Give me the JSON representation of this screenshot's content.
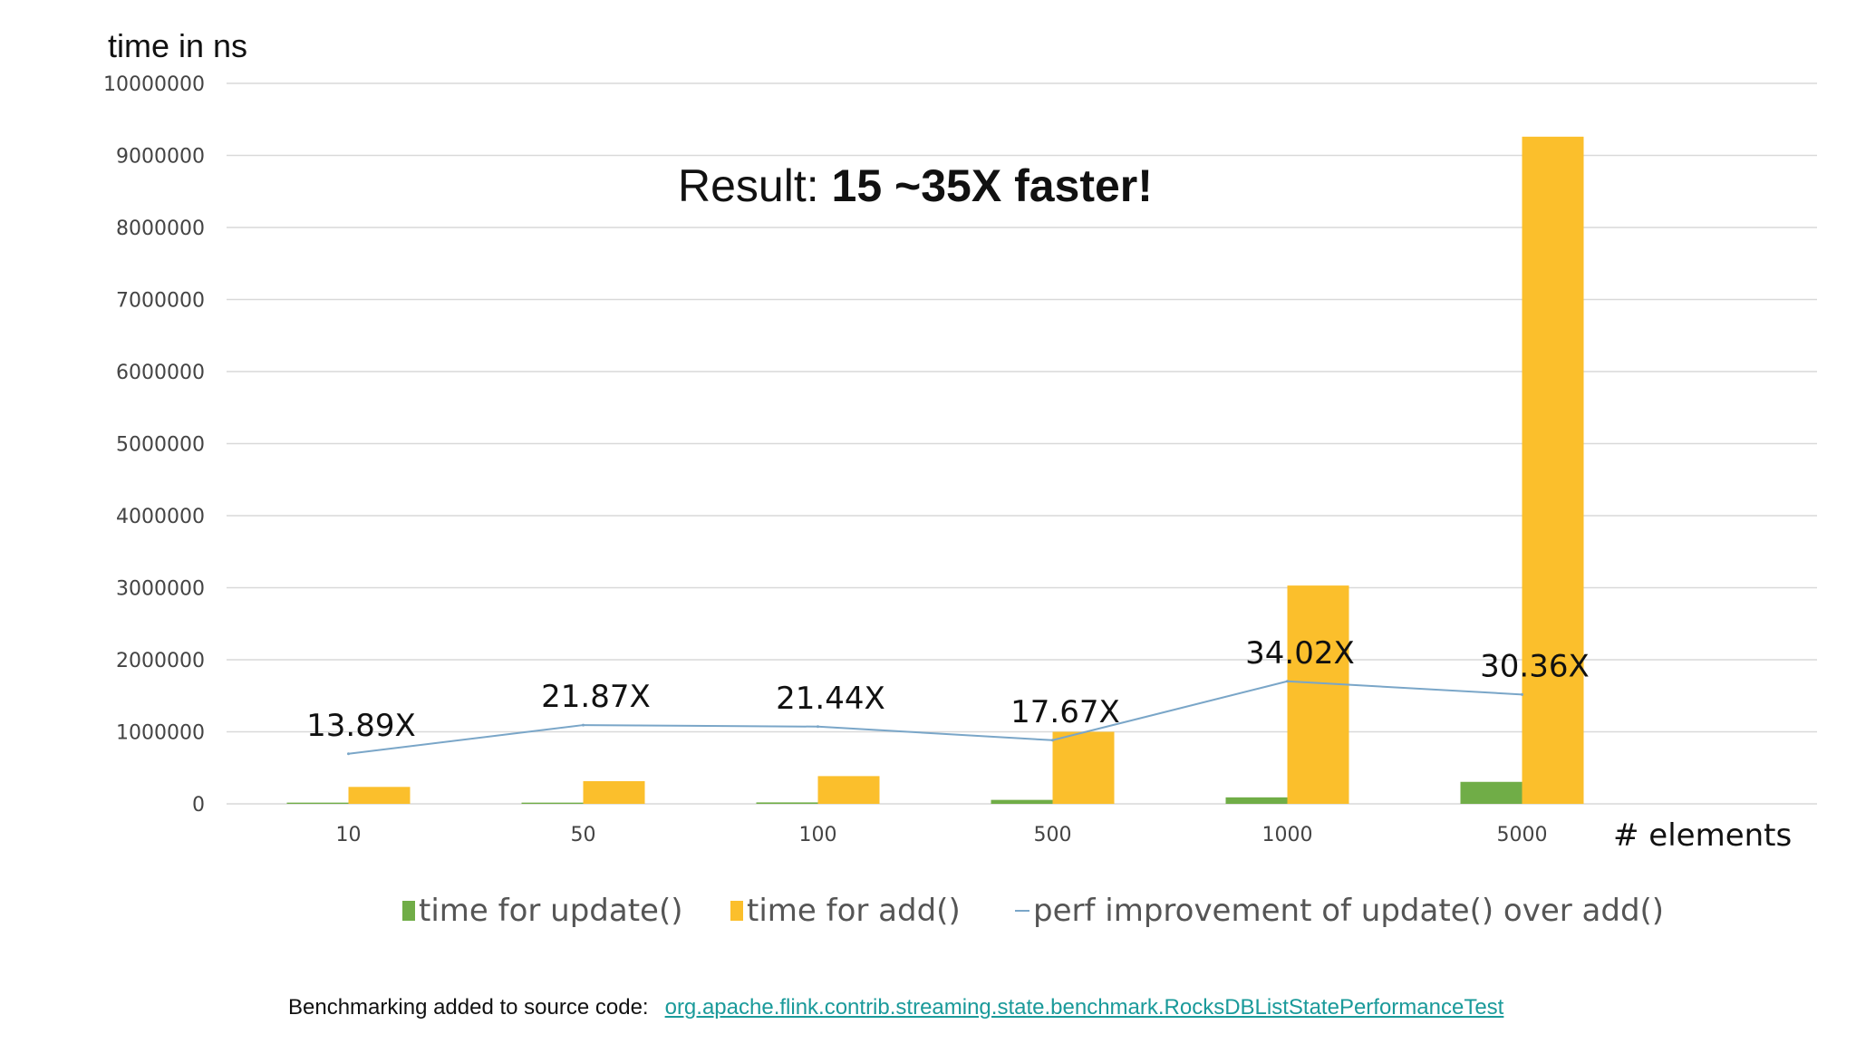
{
  "labels": {
    "y_axis_title": "time in ns",
    "headline_prefix": "Result: ",
    "headline_bold": "15 ~35X faster!",
    "x_axis_title": "# elements"
  },
  "legend": {
    "update_label": "time for update()",
    "add_label": "time for add()",
    "perf_label": "perf improvement of update() over add()"
  },
  "footer": {
    "text": "Benchmarking added to source code:",
    "link_text": "org.apache.flink.contrib.streaming.state.benchmark.RocksDBListStatePerformanceTest"
  },
  "colors": {
    "update": "#70ad47",
    "add": "#fbbf2c",
    "perf_line": "#7aa6c8",
    "grid": "#d9d9d9"
  },
  "chart_data": {
    "type": "bar",
    "categories": [
      "10",
      "50",
      "100",
      "500",
      "1000",
      "5000"
    ],
    "ylim": [
      0,
      10000000
    ],
    "yticks": [
      0,
      1000000,
      2000000,
      3000000,
      4000000,
      5000000,
      6000000,
      7000000,
      8000000,
      9000000,
      10000000
    ],
    "series": [
      {
        "name": "time for update()",
        "values": [
          17000,
          17000,
          20000,
          55000,
          90000,
          305000
        ]
      },
      {
        "name": "time for add()",
        "values": [
          235000,
          315000,
          385000,
          1000000,
          3030000,
          9260000
        ]
      }
    ],
    "line_series": {
      "name": "perf improvement of update() over add()",
      "values": [
        13.89,
        21.87,
        21.44,
        17.67,
        34.02,
        30.36
      ],
      "labels": [
        "13.89X",
        "21.87X",
        "21.44X",
        "17.67X",
        "34.02X",
        "30.36X"
      ],
      "y2lim": [
        0,
        200
      ]
    }
  }
}
